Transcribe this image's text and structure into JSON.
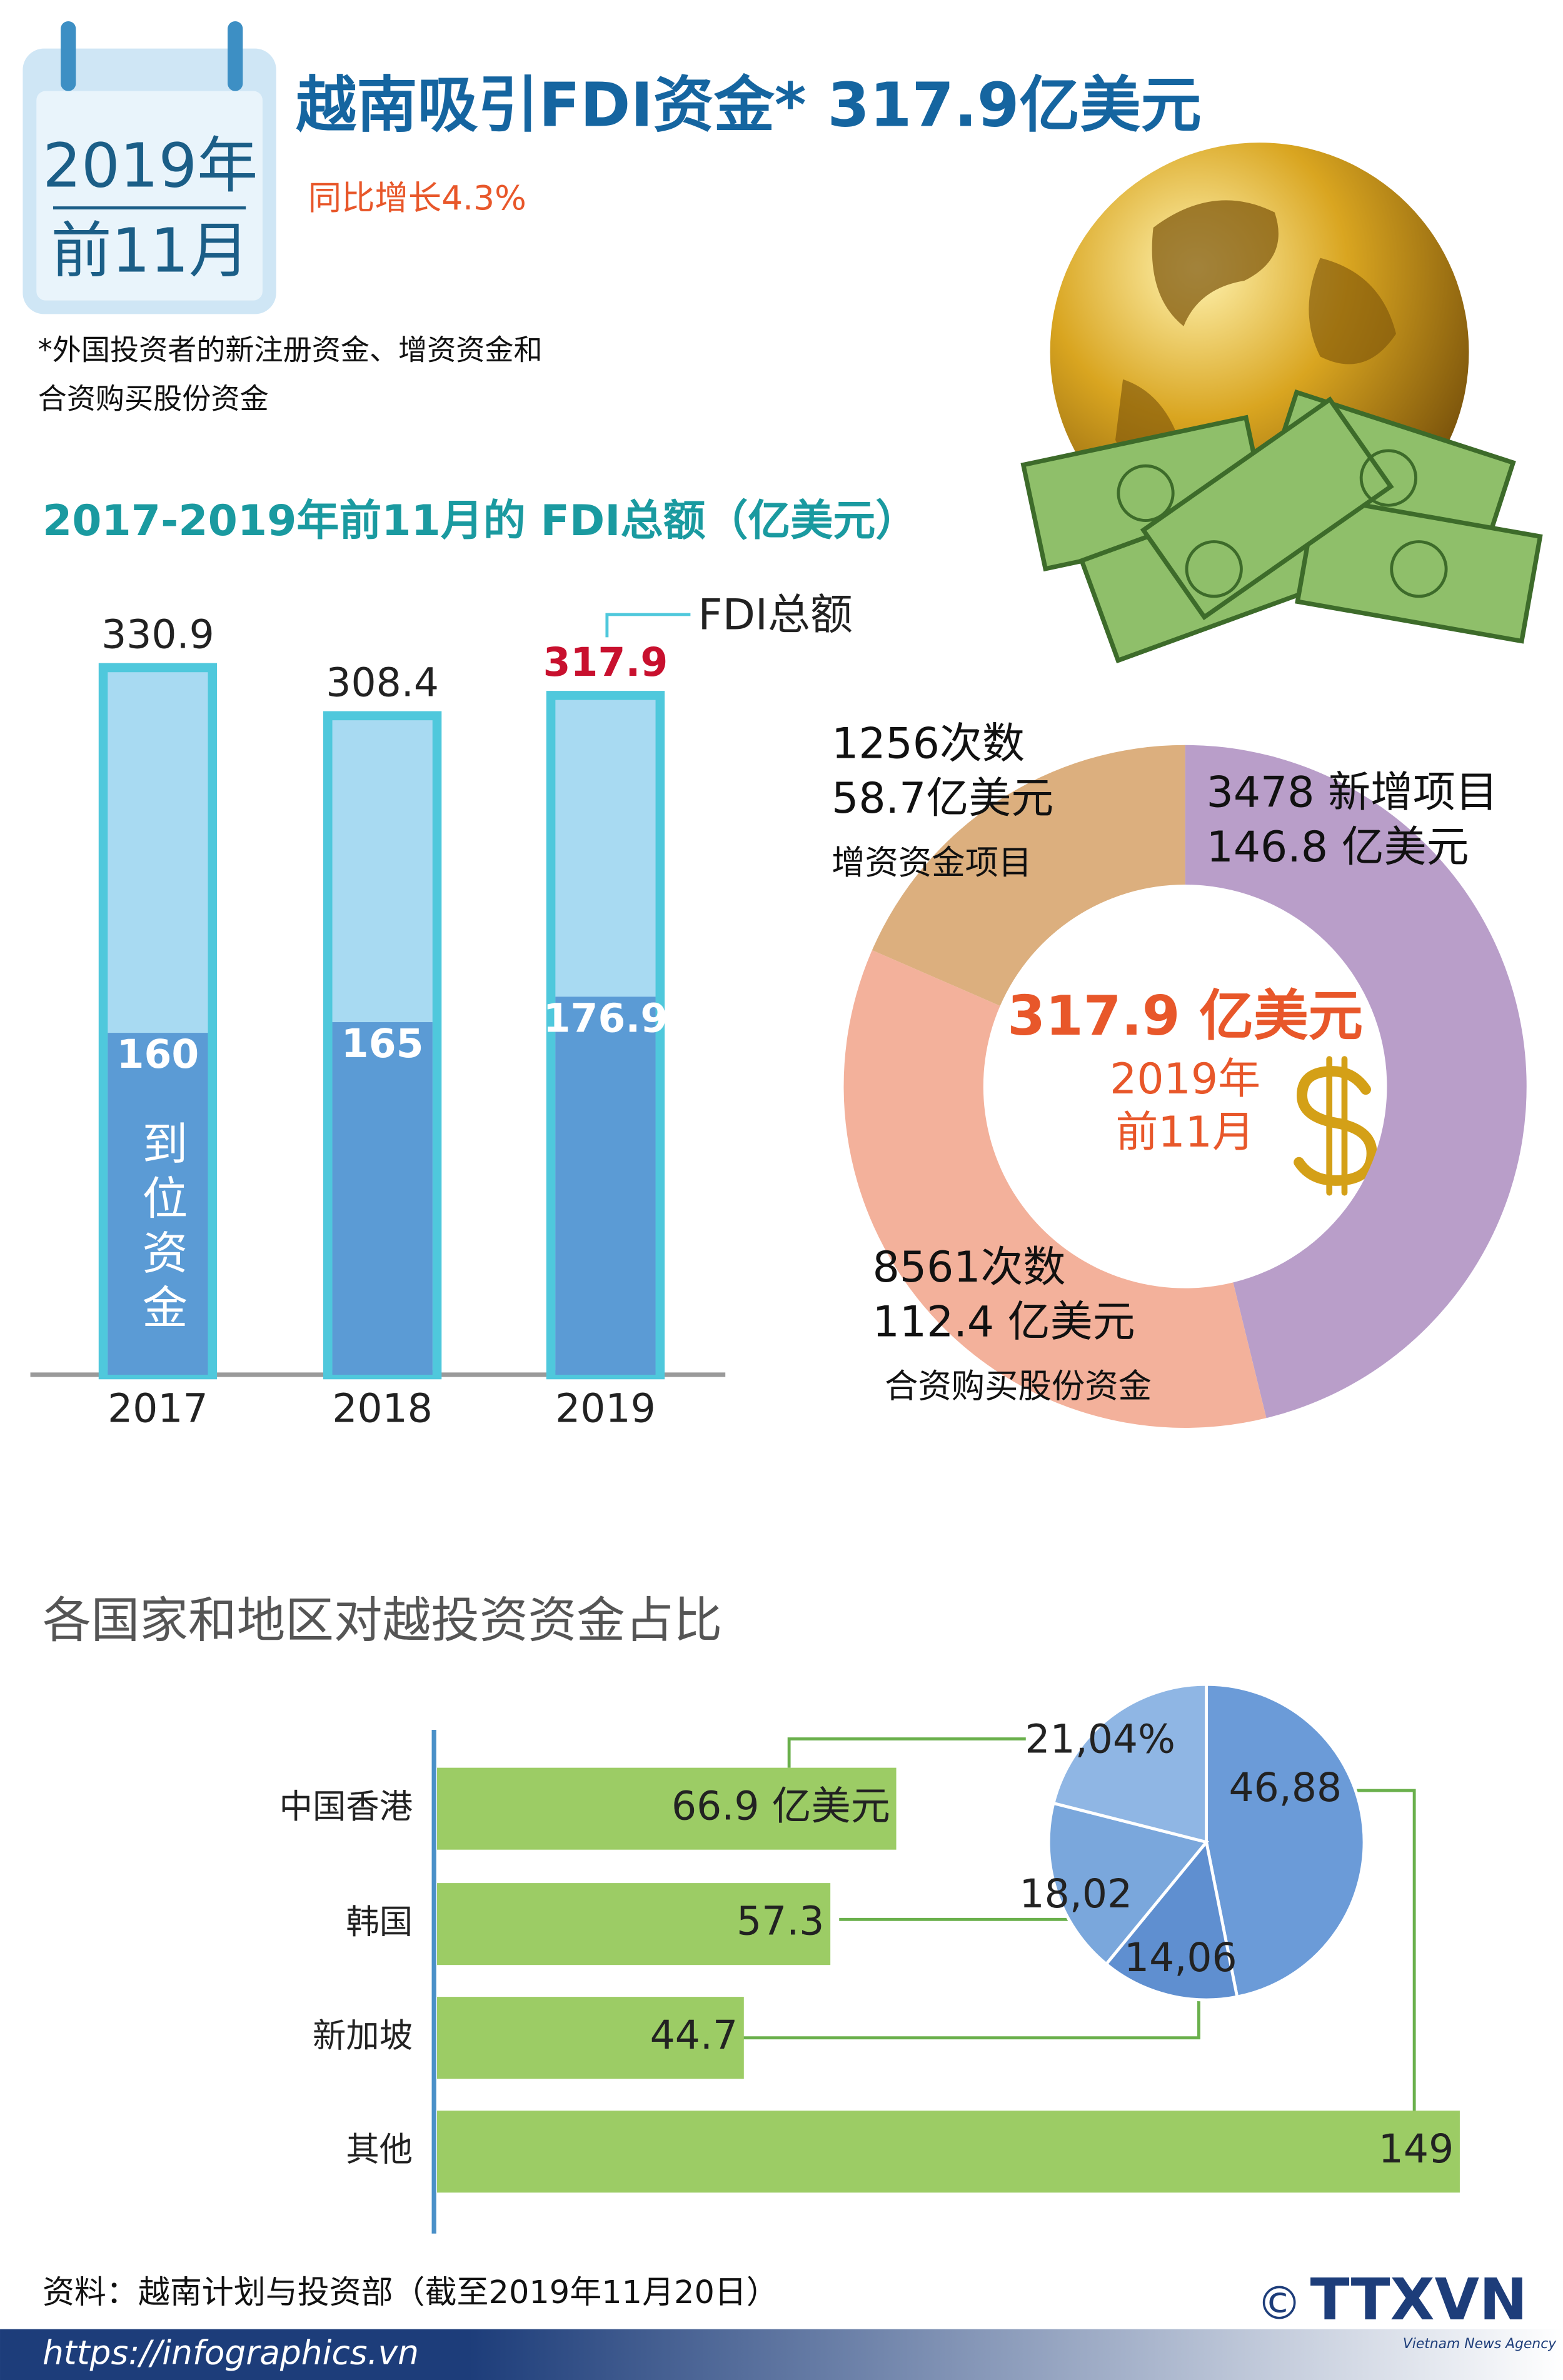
{
  "header": {
    "badge": [
      "2019年",
      "前11月"
    ],
    "title": "越南吸引FDI资金* 317.9亿美元",
    "subtitle": "同比增长4.3%",
    "footnote": [
      "*外国投资者的新注册资金、增资资金和",
      "合资购买股份资金"
    ]
  },
  "chart_data": [
    {
      "type": "bar",
      "title": "2017-2019年前11月的 FDI总额（亿美元）",
      "categories": [
        "2017",
        "2018",
        "2019"
      ],
      "series": [
        {
          "name": "FDI总额",
          "color": "#a8daf2",
          "border_color": "#4fc8dc",
          "values": [
            330.9,
            308.4,
            317.9
          ]
        },
        {
          "name": "到位资金",
          "color": "#5b9bd5",
          "values": [
            160,
            165,
            176.9
          ]
        }
      ],
      "overlap": true,
      "highlight_category": "2019",
      "highlight_color": "#c8102e"
    },
    {
      "type": "donut",
      "center_labels": [
        "317.9 亿美元",
        "2019年",
        "前11月"
      ],
      "categories": [
        "3478 新增项目",
        "8561次数",
        "1256次数"
      ],
      "values": [
        146.8,
        112.4,
        58.7
      ],
      "value_labels": [
        "146.8 亿美元",
        "112.4 亿美元",
        "58.7亿美元"
      ],
      "annotations": [
        null,
        "合资购买股份资金",
        "增资资金项目"
      ],
      "colors": [
        "#b99ec9",
        "#f3b19b",
        "#dcaf7e"
      ]
    },
    {
      "type": "barh",
      "title": "各国家和地区对越投资资金占比",
      "categories": [
        "中国香港",
        "韩国",
        "新加坡",
        "其他"
      ],
      "values": [
        66.9,
        57.3,
        44.7,
        149
      ],
      "value_labels": [
        "66.9 亿美元",
        "57.3",
        "44.7",
        "149"
      ],
      "color": "#9ccc65"
    },
    {
      "type": "pie",
      "values": [
        46.88,
        14.06,
        18.02,
        21.04
      ],
      "value_labels": [
        "46,88",
        "14,06",
        "18,02",
        "21,04%"
      ],
      "colors": [
        "#6b9bd8",
        "#5f8fd0",
        "#7aa7dc",
        "#8fb6e4"
      ]
    }
  ],
  "footer": {
    "source": "资料：越南计划与投资部（截至2019年11月20日）",
    "url": "https://infographics.vn",
    "copyright": "©",
    "logo": "TTXVN",
    "agency": "Vietnam News Agency"
  }
}
